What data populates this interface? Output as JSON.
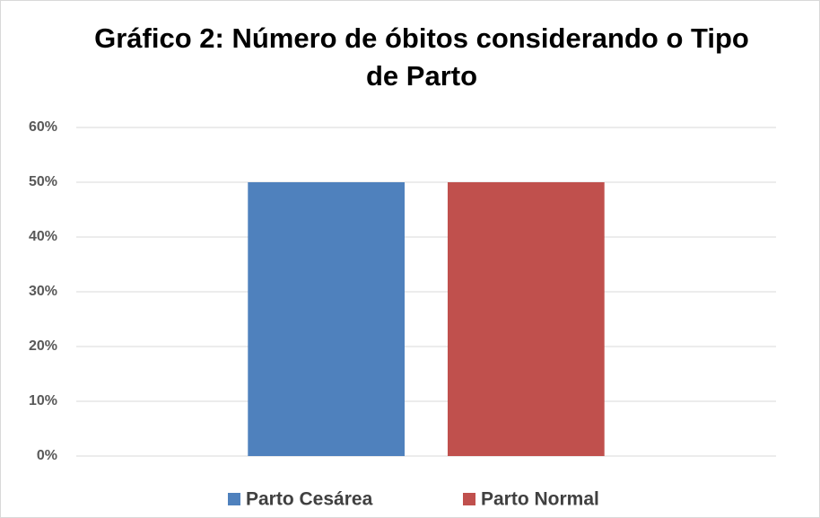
{
  "chart_data": {
    "type": "bar",
    "title": "Gráfico 2: Número de óbitos considerando o Tipo de Parto",
    "categories": [
      null
    ],
    "series": [
      {
        "name": "Parto Cesárea",
        "color": "#4f81bd",
        "values": [
          50
        ]
      },
      {
        "name": "Parto Normal",
        "color": "#c0504d",
        "values": [
          50
        ]
      }
    ],
    "ylim": [
      0,
      60
    ],
    "yticks": [
      {
        "value": 0,
        "label": "0%"
      },
      {
        "value": 10,
        "label": "10%"
      },
      {
        "value": 20,
        "label": "20%"
      },
      {
        "value": 30,
        "label": "30%"
      },
      {
        "value": 40,
        "label": "40%"
      },
      {
        "value": 50,
        "label": "50%"
      },
      {
        "value": 60,
        "label": "60%"
      }
    ],
    "grid": true,
    "legend": "bottom"
  }
}
